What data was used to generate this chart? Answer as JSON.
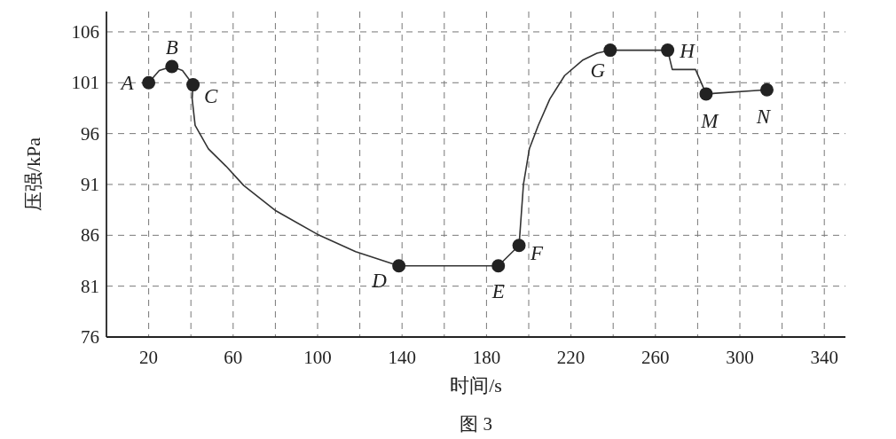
{
  "chart_data": {
    "type": "line",
    "xlabel": "时间/s",
    "ylabel": "压强/kPa",
    "xlim": [
      0,
      350
    ],
    "ylim": [
      76,
      108
    ],
    "xticks": [
      20,
      {
        "value": 40,
        "label": null
      },
      60,
      {
        "value": 80,
        "label": null
      },
      100,
      {
        "value": 120,
        "label": null
      },
      140,
      {
        "value": 160,
        "label": null
      },
      180,
      {
        "value": 200,
        "label": null
      },
      220,
      {
        "value": 240,
        "label": null
      },
      260,
      {
        "value": 280,
        "label": null
      },
      300,
      {
        "value": 320,
        "label": null
      },
      340
    ],
    "yticks": [
      76,
      81,
      86,
      91,
      96,
      101,
      106
    ],
    "grid": true,
    "line_style": "solid",
    "series": [
      {
        "color": "#333333",
        "marker": "none",
        "x": [
          20,
          25,
          31,
          36,
          41,
          40.6,
          42,
          48.3,
          56.6,
          65,
          80.3,
          99.9,
          118,
          138.5,
          185.6,
          195.4,
          195.8,
          197.5,
          200.3,
          204.5,
          210,
          217,
          225.4,
          232.3,
          238.6,
          265.8,
          268,
          279,
          284,
          312.8
        ],
        "values": [
          101,
          102.2,
          102.6,
          102.2,
          100.8,
          99.4,
          96.8,
          94.5,
          92.8,
          90.9,
          88.4,
          86.1,
          84.4,
          83,
          83,
          85,
          86.1,
          91,
          94.5,
          96.8,
          99.4,
          101.7,
          103.2,
          103.9,
          104.2,
          104.2,
          102.3,
          102.3,
          99.9,
          100.3
        ]
      },
      {
        "type": "scatter",
        "color": "#222222",
        "marker": "circle",
        "x": [
          20,
          31,
          41,
          138.5,
          185.6,
          195.4,
          238.6,
          265.8,
          284,
          312.8
        ],
        "values": [
          101,
          102.6,
          100.8,
          83,
          83,
          85,
          104.2,
          104.2,
          99.9,
          100.3
        ]
      }
    ],
    "annotations": [
      {
        "text": "A",
        "x": 20,
        "y": 101
      },
      {
        "text": "B",
        "x": 31,
        "y": 102.6
      },
      {
        "text": "C",
        "x": 41,
        "y": 100.8
      },
      {
        "text": "D",
        "x": 138.5,
        "y": 83
      },
      {
        "text": "E",
        "x": 185.6,
        "y": 83
      },
      {
        "text": "F",
        "x": 195.4,
        "y": 85
      },
      {
        "text": "G",
        "x": 238.6,
        "y": 104.2
      },
      {
        "text": "H",
        "x": 265.8,
        "y": 104.2
      },
      {
        "text": "M",
        "x": 284,
        "y": 99.9
      },
      {
        "text": "N",
        "x": 312.8,
        "y": 100.3
      },
      "图 3"
    ]
  }
}
